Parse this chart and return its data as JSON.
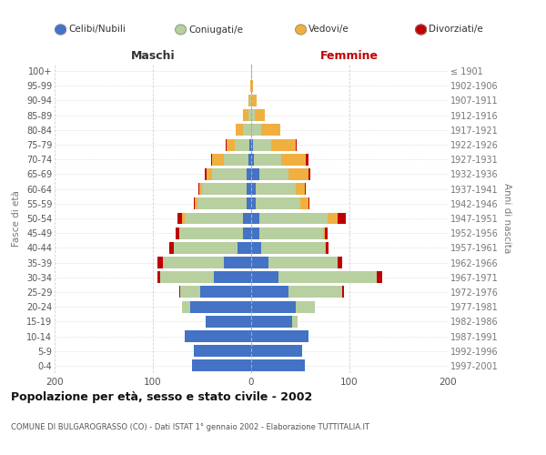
{
  "age_groups": [
    "0-4",
    "5-9",
    "10-14",
    "15-19",
    "20-24",
    "25-29",
    "30-34",
    "35-39",
    "40-44",
    "45-49",
    "50-54",
    "55-59",
    "60-64",
    "65-69",
    "70-74",
    "75-79",
    "80-84",
    "85-89",
    "90-94",
    "95-99",
    "100+"
  ],
  "birth_years": [
    "1997-2001",
    "1992-1996",
    "1987-1991",
    "1982-1986",
    "1977-1981",
    "1972-1976",
    "1967-1971",
    "1962-1966",
    "1957-1961",
    "1952-1956",
    "1947-1951",
    "1942-1946",
    "1937-1941",
    "1932-1936",
    "1927-1931",
    "1922-1926",
    "1917-1921",
    "1912-1916",
    "1907-1911",
    "1902-1906",
    "≤ 1901"
  ],
  "colors": {
    "celibi": "#4472c4",
    "coniugati": "#b8cfa0",
    "vedovi": "#f0b040",
    "divorziati": "#c00000"
  },
  "maschi": {
    "celibi": [
      60,
      58,
      68,
      46,
      62,
      52,
      38,
      28,
      14,
      8,
      8,
      5,
      5,
      5,
      3,
      2,
      0,
      0,
      0,
      0,
      0
    ],
    "coniugati": [
      0,
      0,
      0,
      0,
      8,
      20,
      55,
      62,
      65,
      65,
      60,
      50,
      45,
      35,
      25,
      15,
      8,
      3,
      1,
      0,
      0
    ],
    "vedovi": [
      0,
      0,
      0,
      0,
      0,
      0,
      0,
      0,
      0,
      0,
      2,
      2,
      3,
      5,
      12,
      8,
      8,
      5,
      2,
      1,
      0
    ],
    "divorziati": [
      0,
      0,
      0,
      0,
      0,
      1,
      2,
      5,
      4,
      4,
      5,
      1,
      1,
      2,
      1,
      1,
      0,
      0,
      0,
      0,
      0
    ]
  },
  "femmine": {
    "celibi": [
      55,
      52,
      58,
      42,
      45,
      38,
      28,
      18,
      10,
      8,
      8,
      5,
      5,
      8,
      3,
      2,
      0,
      0,
      0,
      0,
      0
    ],
    "coniugati": [
      0,
      0,
      0,
      5,
      20,
      55,
      100,
      70,
      65,
      65,
      70,
      45,
      40,
      30,
      28,
      18,
      10,
      4,
      1,
      0,
      0
    ],
    "vedovi": [
      0,
      0,
      0,
      0,
      0,
      0,
      0,
      0,
      1,
      2,
      10,
      8,
      10,
      20,
      25,
      25,
      20,
      10,
      5,
      2,
      1
    ],
    "divorziati": [
      0,
      0,
      0,
      0,
      0,
      1,
      5,
      5,
      3,
      3,
      8,
      1,
      1,
      2,
      2,
      1,
      0,
      0,
      0,
      0,
      0
    ]
  },
  "xlim": 200,
  "title": "Popolazione per età, sesso e stato civile - 2002",
  "subtitle": "COMUNE DI BULGAROGRASSO (CO) - Dati ISTAT 1° gennaio 2002 - Elaborazione TUTTITALIA.IT",
  "ylabel_left": "Fasce di età",
  "ylabel_right": "Anni di nascita",
  "maschi_label": "Maschi",
  "femmine_label": "Femmine",
  "legend_labels": [
    "Celibi/Nubili",
    "Coniugati/e",
    "Vedovi/e",
    "Divorziati/e"
  ],
  "background_color": "#ffffff",
  "grid_color": "#cccccc"
}
